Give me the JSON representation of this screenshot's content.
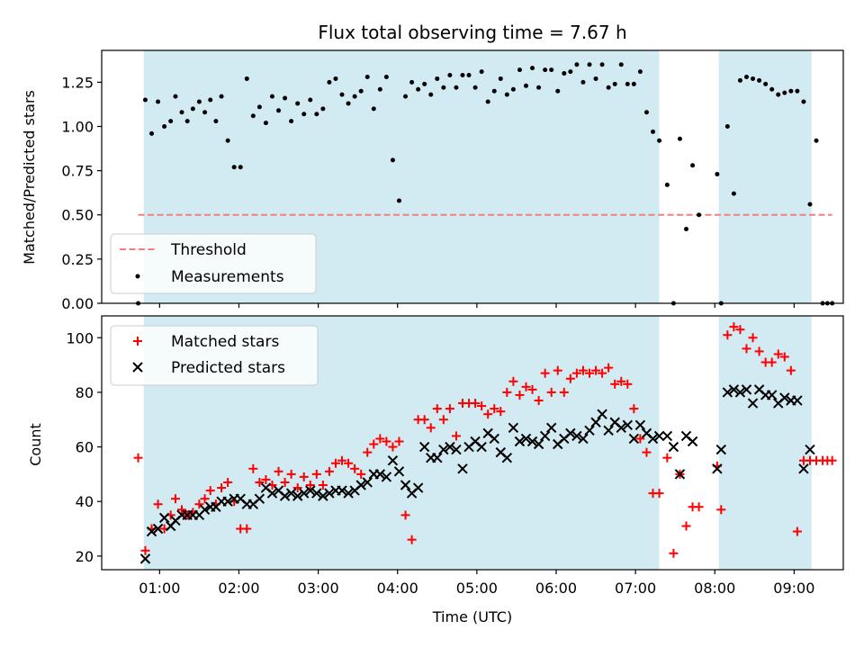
{
  "chart_data": [
    {
      "type": "scatter",
      "title": "Flux total observing time = 7.67 h",
      "xlabel": "",
      "ylabel": "Matched/Predicted stars",
      "x_unit": "hours UTC",
      "xlim": [
        0.27,
        9.62
      ],
      "ylim": [
        0,
        1.43
      ],
      "ytick_labels": [
        "0.00",
        "0.25",
        "0.50",
        "0.75",
        "1.00",
        "1.25"
      ],
      "ytick_values": [
        0,
        0.25,
        0.5,
        0.75,
        1.0,
        1.25
      ],
      "shaded_intervals": [
        [
          0.8,
          7.3
        ],
        [
          8.05,
          9.22
        ]
      ],
      "shade_color": "#add8e6",
      "threshold": {
        "name": "Threshold",
        "y": 0.5,
        "x_range": [
          0.73,
          9.48
        ],
        "color": "#f08080"
      },
      "series": [
        {
          "name": "Measurements",
          "color": "#000000",
          "x": [
            0.73,
            0.82,
            0.9,
            0.98,
            1.06,
            1.14,
            1.2,
            1.28,
            1.35,
            1.42,
            1.5,
            1.57,
            1.64,
            1.71,
            1.78,
            1.86,
            1.94,
            2.02,
            2.1,
            2.18,
            2.26,
            2.34,
            2.42,
            2.5,
            2.58,
            2.66,
            2.74,
            2.82,
            2.9,
            2.98,
            3.06,
            3.14,
            3.22,
            3.3,
            3.38,
            3.46,
            3.54,
            3.62,
            3.7,
            3.78,
            3.86,
            3.94,
            4.02,
            4.1,
            4.18,
            4.26,
            4.34,
            4.42,
            4.5,
            4.58,
            4.66,
            4.74,
            4.82,
            4.9,
            4.98,
            5.06,
            5.14,
            5.22,
            5.3,
            5.38,
            5.46,
            5.54,
            5.62,
            5.7,
            5.78,
            5.86,
            5.94,
            6.02,
            6.1,
            6.18,
            6.26,
            6.34,
            6.42,
            6.5,
            6.58,
            6.66,
            6.74,
            6.82,
            6.9,
            6.98,
            7.06,
            7.14,
            7.22,
            7.3,
            7.4,
            7.48,
            7.56,
            7.64,
            7.72,
            7.8,
            8.03,
            8.08,
            8.16,
            8.24,
            8.32,
            8.4,
            8.48,
            8.56,
            8.64,
            8.72,
            8.8,
            8.88,
            8.96,
            9.04,
            9.12,
            9.2,
            9.28,
            9.36,
            9.42,
            9.48
          ],
          "y": [
            0,
            1.15,
            0.96,
            1.14,
            1.0,
            1.03,
            1.17,
            1.08,
            1.03,
            1.1,
            1.14,
            1.08,
            1.15,
            1.03,
            1.17,
            0.92,
            0.77,
            0.77,
            1.27,
            1.06,
            1.11,
            1.02,
            1.17,
            1.09,
            1.16,
            1.03,
            1.13,
            1.07,
            1.15,
            1.07,
            1.1,
            1.25,
            1.27,
            1.18,
            1.13,
            1.17,
            1.2,
            1.28,
            1.1,
            1.21,
            1.28,
            0.81,
            0.58,
            1.17,
            1.25,
            1.21,
            1.24,
            1.18,
            1.27,
            1.22,
            1.29,
            1.22,
            1.29,
            1.29,
            1.22,
            1.31,
            1.14,
            1.2,
            1.27,
            1.18,
            1.21,
            1.32,
            1.23,
            1.33,
            1.22,
            1.32,
            1.32,
            1.2,
            1.3,
            1.31,
            1.35,
            1.25,
            1.35,
            1.27,
            1.35,
            1.22,
            1.24,
            1.35,
            1.24,
            1.24,
            1.31,
            1.08,
            0.97,
            0.92,
            0.67,
            0,
            0.93,
            0.42,
            0.78,
            0.5,
            0.73,
            0,
            1.0,
            0.62,
            1.26,
            1.28,
            1.27,
            1.26,
            1.24,
            1.21,
            1.18,
            1.19,
            1.2,
            1.2,
            1.14,
            0.56,
            0.92,
            0,
            0,
            0
          ]
        }
      ]
    },
    {
      "type": "scatter",
      "title": "",
      "xlabel": "Time (UTC)",
      "ylabel": "Count",
      "x_unit": "hours UTC",
      "xlim": [
        0.27,
        9.62
      ],
      "ylim": [
        15,
        108
      ],
      "ytick_labels": [
        "20",
        "40",
        "60",
        "80",
        "100"
      ],
      "ytick_values": [
        20,
        40,
        60,
        80,
        100
      ],
      "xtick_labels": [
        "01:00",
        "02:00",
        "03:00",
        "04:00",
        "05:00",
        "06:00",
        "07:00",
        "08:00",
        "09:00"
      ],
      "xtick_values": [
        1,
        2,
        3,
        4,
        5,
        6,
        7,
        8,
        9
      ],
      "shaded_intervals": [
        [
          0.8,
          7.3
        ],
        [
          8.05,
          9.22
        ]
      ],
      "shade_color": "#add8e6",
      "series": [
        {
          "name": "Matched stars",
          "marker": "plus",
          "color": "#ff0000",
          "x": [
            0.73,
            0.82,
            0.9,
            0.98,
            1.06,
            1.14,
            1.2,
            1.28,
            1.35,
            1.42,
            1.5,
            1.57,
            1.64,
            1.71,
            1.78,
            1.86,
            1.94,
            2.02,
            2.1,
            2.18,
            2.26,
            2.34,
            2.42,
            2.5,
            2.58,
            2.66,
            2.74,
            2.82,
            2.9,
            2.98,
            3.06,
            3.14,
            3.22,
            3.3,
            3.38,
            3.46,
            3.54,
            3.62,
            3.7,
            3.78,
            3.86,
            3.94,
            4.02,
            4.1,
            4.18,
            4.26,
            4.34,
            4.42,
            4.5,
            4.58,
            4.66,
            4.74,
            4.82,
            4.9,
            4.98,
            5.06,
            5.14,
            5.22,
            5.3,
            5.38,
            5.46,
            5.54,
            5.62,
            5.7,
            5.78,
            5.86,
            5.94,
            6.02,
            6.1,
            6.18,
            6.26,
            6.34,
            6.42,
            6.5,
            6.58,
            6.66,
            6.74,
            6.82,
            6.9,
            6.98,
            7.06,
            7.14,
            7.22,
            7.3,
            7.4,
            7.48,
            7.56,
            7.64,
            7.72,
            7.8,
            8.03,
            8.08,
            8.16,
            8.24,
            8.32,
            8.4,
            8.48,
            8.56,
            8.64,
            8.72,
            8.8,
            8.88,
            8.96,
            9.04,
            9.12,
            9.2,
            9.28,
            9.36,
            9.42,
            9.48
          ],
          "y": [
            56,
            22,
            30,
            39,
            30,
            35,
            41,
            37,
            35,
            36,
            39,
            41,
            44,
            39,
            45,
            47,
            40,
            30,
            30,
            52,
            47,
            48,
            46,
            51,
            47,
            50,
            45,
            49,
            46,
            50,
            46,
            51,
            54,
            55,
            54,
            52,
            50,
            58,
            61,
            63,
            62,
            60,
            62,
            35,
            26,
            70,
            70,
            67,
            74,
            70,
            74,
            64,
            76,
            76,
            76,
            75,
            72,
            74,
            73,
            80,
            84,
            79,
            82,
            81,
            77,
            87,
            80,
            88,
            80,
            85,
            87,
            88,
            87,
            88,
            87,
            89,
            83,
            84,
            83,
            74,
            63,
            58,
            43,
            43,
            56,
            21,
            50,
            31,
            38,
            38,
            53,
            37,
            101,
            104,
            103,
            96,
            100,
            95,
            91,
            91,
            94,
            93,
            88,
            29,
            55,
            55,
            55,
            55,
            55,
            55
          ]
        },
        {
          "name": "Predicted stars",
          "marker": "x",
          "color": "#000000",
          "x": [
            0.82,
            0.9,
            0.98,
            1.06,
            1.14,
            1.2,
            1.28,
            1.35,
            1.42,
            1.5,
            1.57,
            1.64,
            1.71,
            1.78,
            1.86,
            1.94,
            2.02,
            2.1,
            2.18,
            2.26,
            2.34,
            2.42,
            2.5,
            2.58,
            2.66,
            2.74,
            2.82,
            2.9,
            2.98,
            3.06,
            3.14,
            3.22,
            3.3,
            3.38,
            3.46,
            3.54,
            3.62,
            3.7,
            3.78,
            3.86,
            3.94,
            4.02,
            4.1,
            4.18,
            4.26,
            4.34,
            4.42,
            4.5,
            4.58,
            4.66,
            4.74,
            4.82,
            4.9,
            4.98,
            5.06,
            5.14,
            5.22,
            5.3,
            5.38,
            5.46,
            5.54,
            5.62,
            5.7,
            5.78,
            5.86,
            5.94,
            6.02,
            6.1,
            6.18,
            6.26,
            6.34,
            6.42,
            6.5,
            6.58,
            6.66,
            6.74,
            6.82,
            6.9,
            6.98,
            7.06,
            7.14,
            7.22,
            7.3,
            7.4,
            7.48,
            7.56,
            7.64,
            7.72,
            8.03,
            8.08,
            8.16,
            8.24,
            8.32,
            8.4,
            8.48,
            8.56,
            8.64,
            8.72,
            8.8,
            8.88,
            8.96,
            9.04,
            9.12,
            9.2
          ],
          "y": [
            19,
            29,
            30,
            34,
            31,
            33,
            35,
            35,
            35,
            35,
            37,
            38,
            38,
            40,
            40,
            41,
            41,
            39,
            39,
            41,
            45,
            43,
            44,
            42,
            43,
            42,
            43,
            44,
            43,
            42,
            43,
            44,
            44,
            43,
            44,
            46,
            47,
            50,
            50,
            49,
            55,
            51,
            46,
            43,
            45,
            60,
            56,
            56,
            59,
            60,
            59,
            52,
            60,
            62,
            60,
            65,
            63,
            58,
            56,
            67,
            62,
            63,
            62,
            61,
            64,
            67,
            61,
            63,
            65,
            64,
            63,
            66,
            69,
            72,
            66,
            69,
            67,
            68,
            63,
            68,
            65,
            63,
            64,
            64,
            60,
            50,
            64,
            62,
            52,
            59,
            80,
            81,
            80,
            81,
            76,
            81,
            79,
            79,
            76,
            78,
            77,
            77,
            52,
            59
          ]
        }
      ]
    }
  ]
}
